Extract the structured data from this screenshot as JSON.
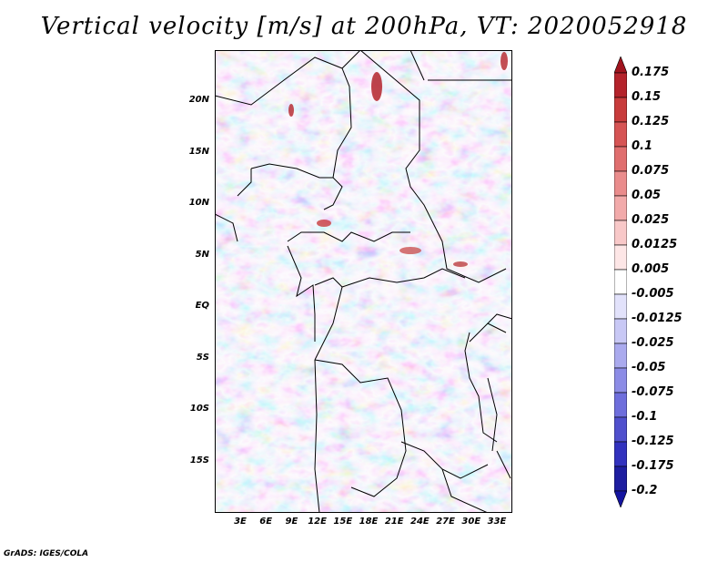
{
  "title": "Vertical velocity [m/s] at 200hPa, VT: 2020052918",
  "credit": "GrADS: IGES/COLA",
  "map": {
    "lat_labels": [
      "20N",
      "15N",
      "10N",
      "5N",
      "EQ",
      "5S",
      "10S",
      "15S"
    ],
    "lon_labels": [
      "3E",
      "6E",
      "9E",
      "12E",
      "15E",
      "18E",
      "21E",
      "24E",
      "27E",
      "30E",
      "33E"
    ]
  },
  "colorbar": {
    "levels": [
      "0.175",
      "0.15",
      "0.125",
      "0.1",
      "0.075",
      "0.05",
      "0.025",
      "0.0125",
      "0.005",
      "-0.005",
      "-0.0125",
      "-0.025",
      "-0.05",
      "-0.075",
      "-0.1",
      "-0.125",
      "-0.175",
      "-0.2"
    ],
    "colors": [
      "#a0141e",
      "#b4232b",
      "#c83c3c",
      "#d65454",
      "#e06e6e",
      "#ea8c8c",
      "#f2aaaa",
      "#f8c8c8",
      "#fde6e6",
      "#ffffff",
      "#e2e2fb",
      "#c8c8f5",
      "#aaaaee",
      "#8c8ce6",
      "#6e6edc",
      "#5050cd",
      "#3232be",
      "#1e1ea0",
      "#1414a0"
    ]
  }
}
